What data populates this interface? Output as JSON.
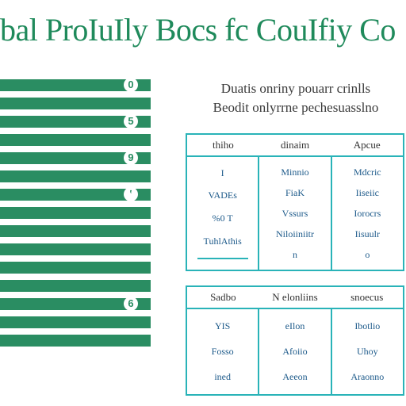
{
  "headline": "bal ProIuIly Bocs fc CouIfiy Co",
  "intro": {
    "line1": "Duatis onriny pouarr crinlls",
    "line2": "Beodit onlyrrne pechesuasslno"
  },
  "stripes": {
    "count": 15,
    "marks": [
      "0",
      "",
      "5",
      "",
      "9",
      "",
      "ʽ",
      "",
      "",
      "",
      "",
      "",
      "6",
      "",
      ""
    ]
  },
  "panel_a": {
    "headers": [
      "thiho",
      "dinaim",
      "Apcue"
    ],
    "cols": [
      [
        "I",
        "VADEs",
        "%0 T",
        "TuhlAthis"
      ],
      [
        "Minnio",
        "FiaK",
        "Vssurs",
        "Niloiiniitr",
        "n"
      ],
      [
        "Mdcric",
        "Iiseiic",
        "Iorocrs",
        "Iisuulr",
        "o"
      ]
    ]
  },
  "panel_b": {
    "headers": [
      "Sadbo",
      "N elonliins",
      "snoecus"
    ],
    "cols": [
      [
        "YIS",
        "Fosso",
        "ined"
      ],
      [
        "eIlon",
        "Afoiio",
        "Aeeon"
      ],
      [
        "Ibotlio",
        "Uhoy",
        "Araonno"
      ]
    ]
  }
}
